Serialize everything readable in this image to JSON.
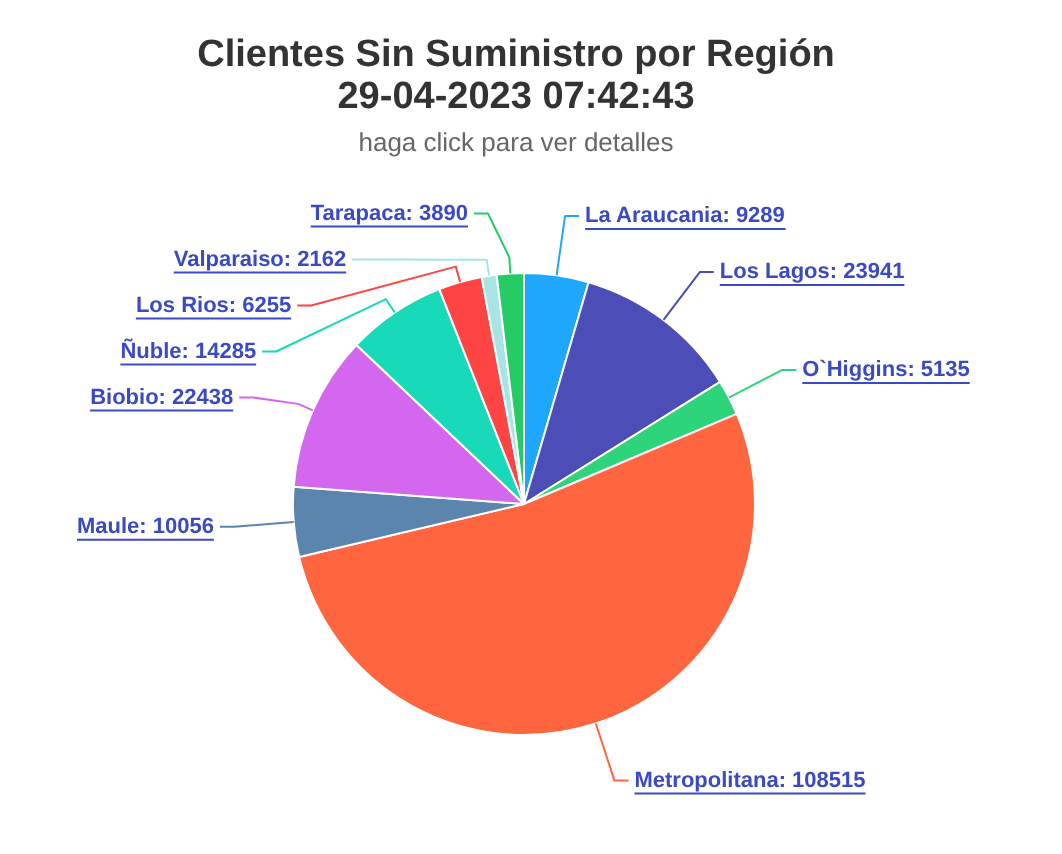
{
  "chart_data": {
    "type": "pie",
    "title": "Clientes Sin Suministro por Región\n29-04-2023 07:42:43",
    "subtitle": "haga click para ver detalles",
    "categories": [
      null,
      null,
      null,
      null,
      null,
      null,
      null,
      null,
      null,
      null
    ],
    "values": [
      9289,
      23941,
      5135,
      108515,
      10056,
      22438,
      14285,
      6255,
      2162,
      3890
    ],
    "value_labels": [
      "La Araucania: 9289",
      "Los Lagos: 23941",
      "O`Higgins: 5135",
      "Metropolitana: 108515",
      "Maule: 10056",
      "Biobio: 22438",
      "Ñuble: 14285",
      "Los Rios: 6255",
      "Valparaiso: 2162",
      "Tarapaca: 3890"
    ],
    "colors": [
      "#1ea7fd",
      "#4d4db8",
      "#2ed47a",
      "#ff6640",
      "#5b85ad",
      "#d368ef",
      "#18d9b8",
      "#ff4444",
      "#a9e4e4",
      "#25cc66"
    ]
  }
}
